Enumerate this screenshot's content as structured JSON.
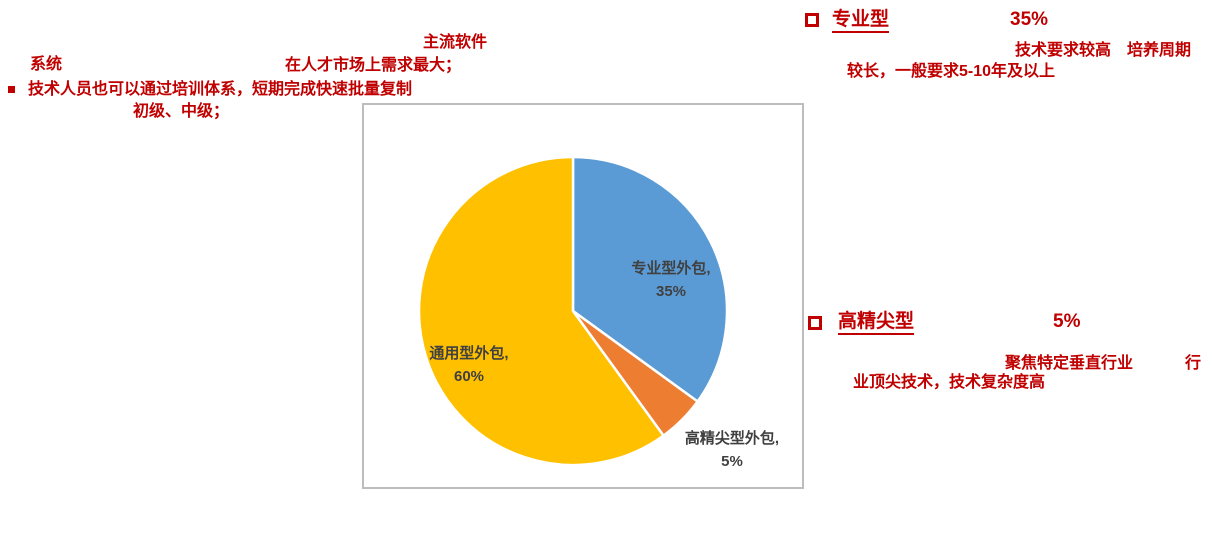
{
  "page": {
    "accent_red": "#C00000",
    "label_gray": "#404040",
    "chart_border": "#BDBDBD",
    "background": "#FFFFFF"
  },
  "annotations": {
    "main_software": "主流软件",
    "system": "系统",
    "market_demand": "在人才市场上需求最大；",
    "training": "技术人员也可以通过培训体系，短期完成快速批量复制",
    "junior_mid": "初级、中级；"
  },
  "sections": [
    {
      "title": "专业型",
      "pct": "35%",
      "desc_line1": "技术要求较高　培养周期",
      "desc_line2": "较长，一般要求5-10年及以上"
    },
    {
      "title": "高精尖型",
      "pct": "5%",
      "desc_line1a": "聚焦特定垂直行业",
      "desc_line1b": "行",
      "desc_line2": "业顶尖技术，技术复杂度高"
    }
  ],
  "chart_data": {
    "type": "pie",
    "title": "",
    "categories": [
      "专业型外包",
      "高精尖型外包",
      "通用型外包"
    ],
    "values": [
      35,
      5,
      60
    ],
    "start_angle_deg": 0,
    "direction": "clockwise",
    "legend_position": "none",
    "label_color": "#404040",
    "slice_stroke": "#FFFFFF",
    "slices": [
      {
        "name": "专业型外包",
        "value": 35,
        "label": "专业型外包,",
        "pct_label": "35%",
        "color": "#5B9BD5",
        "label_inside": true
      },
      {
        "name": "高精尖型外包",
        "value": 5,
        "label": "高精尖型外包,",
        "pct_label": "5%",
        "color": "#ED7D31",
        "label_inside": false
      },
      {
        "name": "通用型外包",
        "value": 60,
        "label": "通用型外包,",
        "pct_label": "60%",
        "color": "#FFC000",
        "label_inside": true
      }
    ]
  }
}
